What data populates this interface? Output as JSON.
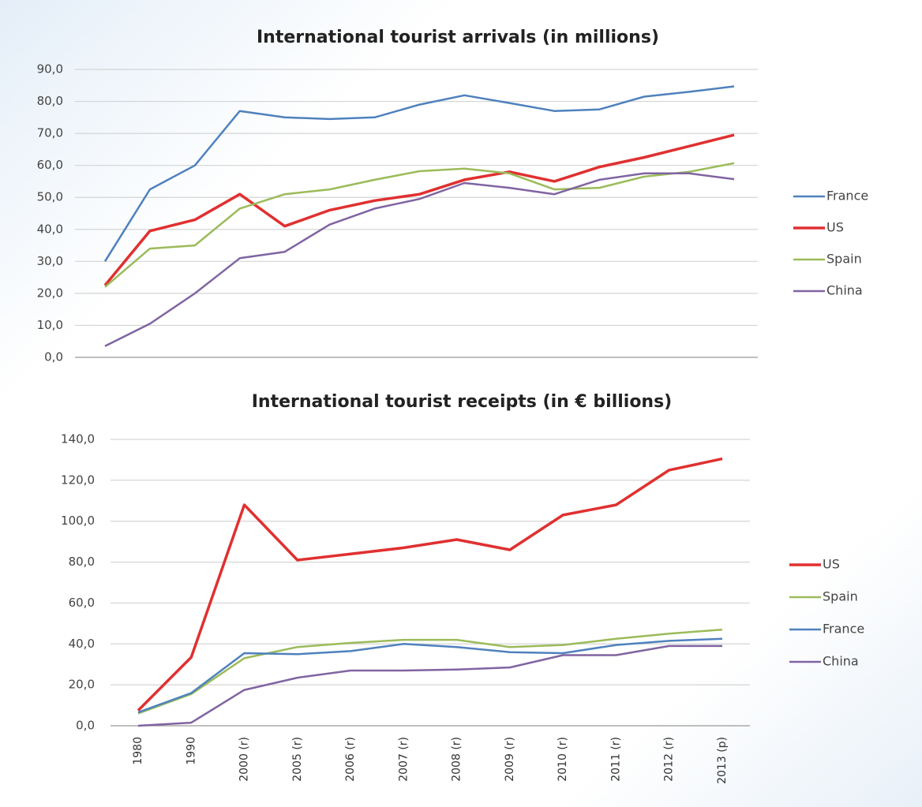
{
  "chart_data": [
    {
      "type": "line",
      "title": "International tourist arrivals (in millions)",
      "categories": [
        null,
        null,
        null,
        null,
        null,
        null,
        null,
        null,
        null,
        null,
        null,
        null,
        null,
        null,
        null
      ],
      "ylim": [
        0,
        90
      ],
      "yticks": [
        {
          "value": 0,
          "label": "0,0"
        },
        {
          "value": 10,
          "label": "10,0"
        },
        {
          "value": 20,
          "label": "20,0"
        },
        {
          "value": 30,
          "label": "30,0"
        },
        {
          "value": 40,
          "label": "40,0"
        },
        {
          "value": 50,
          "label": "50,0"
        },
        {
          "value": 60,
          "label": "60,0"
        },
        {
          "value": 70,
          "label": "70,0"
        },
        {
          "value": 80,
          "label": "80,0"
        },
        {
          "value": 90,
          "label": "90,0"
        }
      ],
      "grid": true,
      "legend": "right",
      "series": [
        {
          "name": "France",
          "color": "#4f81bd",
          "values": [
            30,
            52.5,
            60,
            77,
            75,
            74.5,
            75,
            79,
            81.9,
            79.5,
            77,
            77.5,
            81.5,
            83,
            84.7
          ]
        },
        {
          "name": "US",
          "color": "#e03030",
          "values": [
            22.5,
            39.5,
            43,
            51,
            41,
            46,
            49,
            51,
            55.5,
            58,
            55,
            59.5,
            62.5,
            66,
            69.5
          ]
        },
        {
          "name": "Spain",
          "color": "#9bbb59",
          "values": [
            22,
            34,
            35,
            46.5,
            51,
            52.5,
            55.5,
            58.2,
            59,
            57.5,
            52.5,
            53,
            56.5,
            58,
            60.7
          ]
        },
        {
          "name": "China",
          "color": "#8064a2",
          "values": [
            3.5,
            10.5,
            20,
            31,
            33,
            41.5,
            46.5,
            49.5,
            54.5,
            53,
            51,
            55.5,
            57.5,
            57.5,
            55.7
          ]
        }
      ]
    },
    {
      "type": "line",
      "title": "International tourist receipts (in € billions)",
      "categories": [
        "1980",
        "1990",
        "2000 (r)",
        "2005 (r)",
        "2006 (r)",
        "2007 (r)",
        "2008 (r)",
        "2009 (r)",
        "2010 (r)",
        "2011 (r)",
        "2012 (r)",
        "2013 (p)"
      ],
      "ylim": [
        0,
        140
      ],
      "yticks": [
        {
          "value": 0,
          "label": "0,0"
        },
        {
          "value": 20,
          "label": "20,0"
        },
        {
          "value": 40,
          "label": "40,0"
        },
        {
          "value": 60,
          "label": "60,0"
        },
        {
          "value": 80,
          "label": "80,0"
        },
        {
          "value": 100,
          "label": "100,0"
        },
        {
          "value": 120,
          "label": "120,0"
        },
        {
          "value": 140,
          "label": "140,0"
        }
      ],
      "grid": true,
      "legend": "right",
      "series": [
        {
          "name": "US",
          "color": "#e03030",
          "values": [
            7.5,
            33.5,
            108,
            81,
            84,
            87,
            91,
            86,
            103,
            108,
            125,
            130.5
          ]
        },
        {
          "name": "Spain",
          "color": "#9bbb59",
          "values": [
            6,
            15.5,
            33,
            38.5,
            40.5,
            42,
            42,
            38.5,
            39.5,
            42.5,
            45,
            47
          ]
        },
        {
          "name": "France",
          "color": "#4f81bd",
          "values": [
            6.5,
            16,
            35.5,
            35,
            36.5,
            40,
            38.5,
            36,
            35.5,
            39.5,
            41.5,
            42.5
          ]
        },
        {
          "name": "China",
          "color": "#8064a2",
          "values": [
            0,
            1.5,
            17.5,
            23.5,
            27,
            27,
            27.5,
            28.5,
            34.5,
            34.5,
            39,
            39
          ]
        }
      ]
    }
  ]
}
